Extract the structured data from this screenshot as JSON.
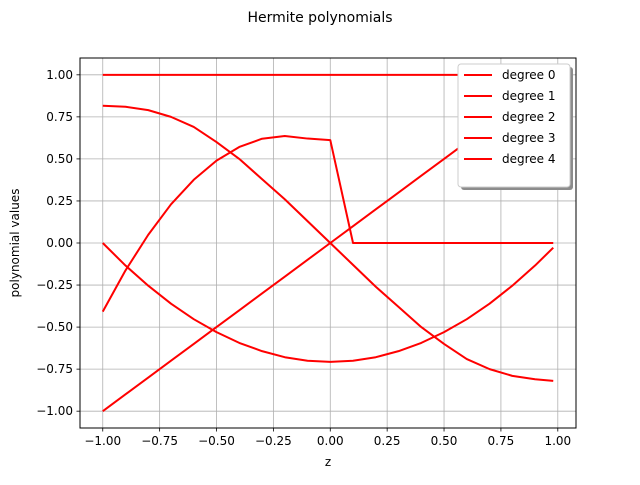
{
  "chart_data": {
    "type": "line",
    "title": "Hermite polynomials",
    "xlabel": "z",
    "ylabel": "polynomial values",
    "xlim": [
      -1.1,
      1.08
    ],
    "ylim": [
      -1.1,
      1.1
    ],
    "x_ticks": [
      -1.0,
      -0.75,
      -0.5,
      -0.25,
      0.0,
      0.25,
      0.5,
      0.75,
      1.0
    ],
    "x_tick_labels": [
      "−1.00",
      "−0.75",
      "−0.50",
      "−0.25",
      "0.00",
      "0.25",
      "0.50",
      "0.75",
      "1.00"
    ],
    "y_ticks": [
      -1.0,
      -0.75,
      -0.5,
      -0.25,
      0.0,
      0.25,
      0.5,
      0.75,
      1.0
    ],
    "y_tick_labels": [
      "−1.00",
      "−0.75",
      "−0.50",
      "−0.25",
      "0.00",
      "0.25",
      "0.50",
      "0.75",
      "1.00"
    ],
    "grid": true,
    "legend_position": "top-right",
    "line_color": "#ff0000",
    "x": [
      -1.0,
      -0.9,
      -0.8,
      -0.7,
      -0.6,
      -0.5,
      -0.4,
      -0.3,
      -0.2,
      -0.1,
      0.0,
      0.1,
      0.2,
      0.3,
      0.4,
      0.5,
      0.6,
      0.7,
      0.8,
      0.9,
      0.98
    ],
    "series": [
      {
        "name": "degree 0",
        "values": [
          1.0,
          1.0,
          1.0,
          1.0,
          1.0,
          1.0,
          1.0,
          1.0,
          1.0,
          1.0,
          1.0,
          1.0,
          1.0,
          1.0,
          1.0,
          1.0,
          1.0,
          1.0,
          1.0,
          1.0,
          1.0
        ]
      },
      {
        "name": "degree 1",
        "values": [
          -1.0,
          -0.9,
          -0.8,
          -0.7,
          -0.6,
          -0.5,
          -0.4,
          -0.3,
          -0.2,
          -0.1,
          0.0,
          0.1,
          0.2,
          0.3,
          0.4,
          0.5,
          0.6,
          0.7,
          0.8,
          0.9,
          0.98
        ]
      },
      {
        "name": "degree 2",
        "values": [
          0.0,
          -0.134,
          -0.254,
          -0.361,
          -0.453,
          -0.53,
          -0.594,
          -0.643,
          -0.679,
          -0.7,
          -0.707,
          -0.7,
          -0.679,
          -0.643,
          -0.594,
          -0.53,
          -0.453,
          -0.361,
          -0.254,
          -0.134,
          -0.028
        ]
      },
      {
        "name": "degree 3",
        "values": [
          -0.408,
          -0.163,
          0.049,
          0.23,
          0.376,
          0.49,
          0.571,
          0.62,
          0.636,
          0.621,
          0.612,
          0.0,
          -0.0,
          -0.0,
          -0.0,
          -0.0,
          -0.0,
          -0.0,
          -0.0,
          -0.0,
          -0.0
        ]
      },
      {
        "name": "degree 4",
        "values": [
          0.816,
          0.81,
          0.79,
          0.75,
          0.69,
          0.6,
          0.5,
          0.38,
          0.26,
          0.13,
          0.0,
          -0.13,
          -0.26,
          -0.38,
          -0.5,
          -0.6,
          -0.69,
          -0.75,
          -0.79,
          -0.81,
          -0.82
        ]
      }
    ]
  }
}
